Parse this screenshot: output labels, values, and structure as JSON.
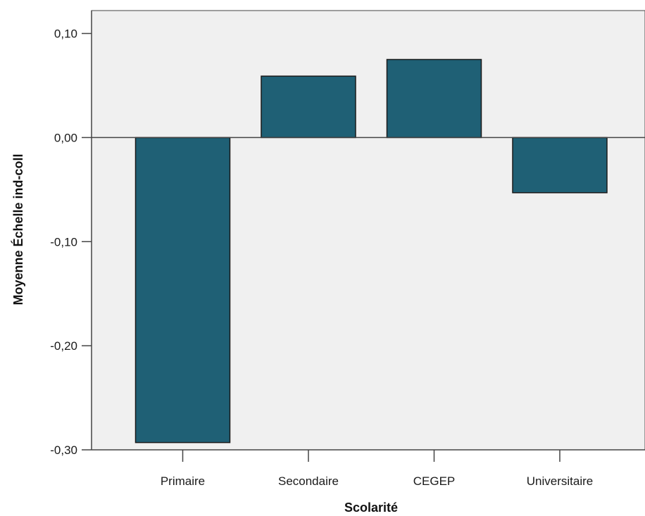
{
  "chart_data": {
    "type": "bar",
    "title": "",
    "xlabel": "Scolarité",
    "ylabel": "Moyenne Échelle ind-coll",
    "categories": [
      "Primaire",
      "Secondaire",
      "CEGEP",
      "Universitaire"
    ],
    "values": [
      -0.293,
      0.059,
      0.075,
      -0.053
    ],
    "ylim": [
      -0.3,
      0.122
    ],
    "yticks": [
      0.1,
      0.0,
      -0.1,
      -0.2,
      -0.3
    ],
    "ytick_labels": [
      "0,10",
      "0,00",
      "-0,10",
      "-0,20",
      "-0,30"
    ],
    "grid": false,
    "legend": "none",
    "colors": {
      "bar_fill": "#1f6075",
      "bar_stroke": "#1a1a1a",
      "plot_background": "#f0f0f0",
      "axis": "#444444"
    }
  }
}
